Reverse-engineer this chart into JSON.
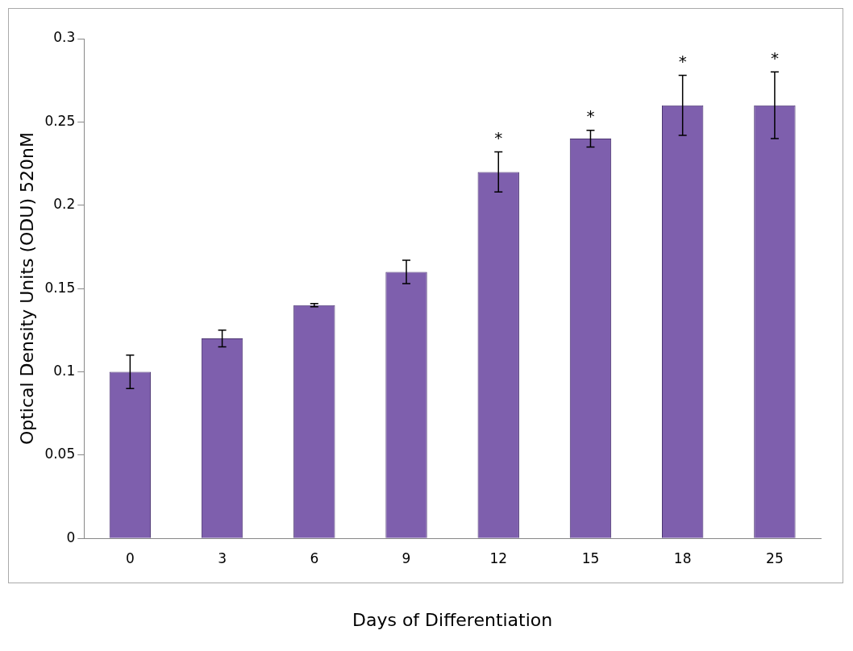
{
  "chart_data": {
    "type": "bar",
    "xlabel": "Days of Differentiation",
    "ylabel": "Optical Density Units (ODU) 520nM",
    "categories": [
      "0",
      "3",
      "6",
      "9",
      "12",
      "15",
      "18",
      "25"
    ],
    "values": [
      0.1,
      0.12,
      0.14,
      0.16,
      0.22,
      0.24,
      0.26,
      0.26
    ],
    "errors": [
      0.01,
      0.005,
      0.001,
      0.007,
      0.012,
      0.005,
      0.018,
      0.02
    ],
    "color": "#7e5fad",
    "ylim": [
      0,
      0.3
    ],
    "yticks": [
      0,
      0.05,
      0.1,
      0.15,
      0.2,
      0.25,
      0.3
    ],
    "grid": false,
    "legend": false,
    "annotations": [
      {
        "text": "*",
        "x": "12",
        "y": 0.22
      },
      {
        "text": "*",
        "x": "15",
        "y": 0.24
      },
      {
        "text": "*",
        "x": "18",
        "y": 0.26
      },
      {
        "text": "*",
        "x": "25",
        "y": 0.26
      }
    ]
  }
}
